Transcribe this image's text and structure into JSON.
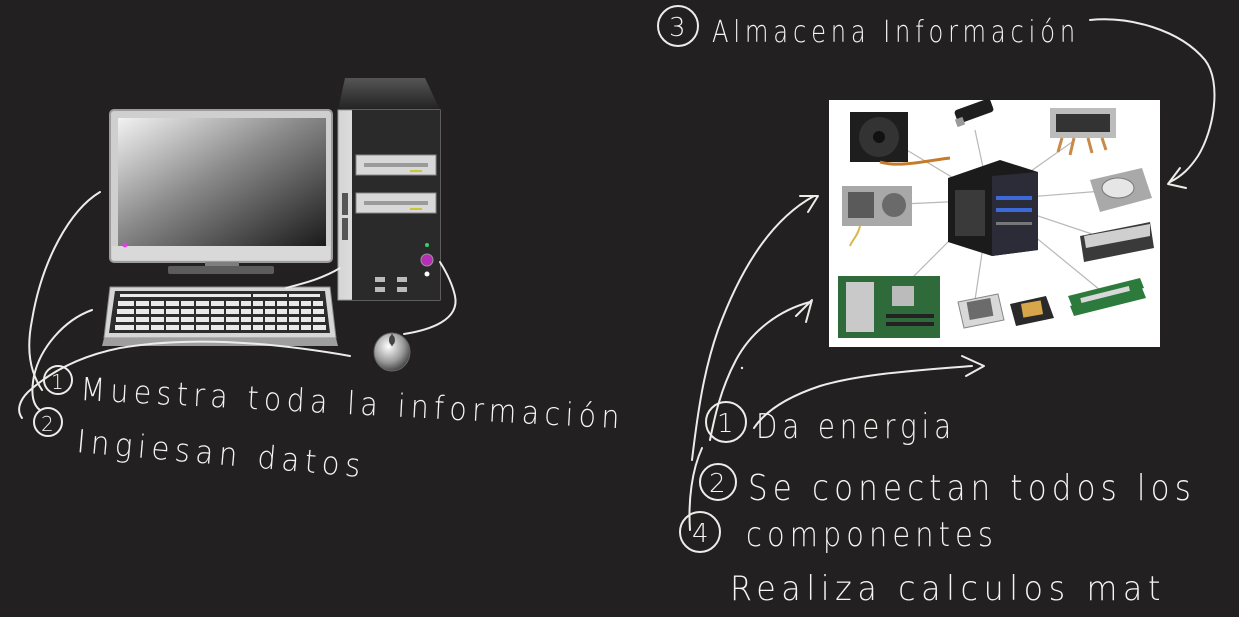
{
  "annotations": {
    "top_right": {
      "number": "3",
      "text": "Almacena Información"
    },
    "left_1": {
      "number": "1",
      "text": "Muestra toda la información"
    },
    "left_2": {
      "number": "2",
      "text": "Ingiesan datos"
    },
    "right_1": {
      "number": "1",
      "text": "Da energia"
    },
    "right_2": {
      "number": "2",
      "text": "Se conectan todos los"
    },
    "right_4": {
      "number": "4",
      "text": "componentes"
    },
    "right_5": {
      "text": "Realiza calculos mat"
    }
  },
  "colors": {
    "background": "#222020",
    "ink": "#ececea",
    "monitor_frame": "#c9c9c9",
    "tower_body": "#e4e4e4",
    "photo_bg": "#ffffff"
  }
}
